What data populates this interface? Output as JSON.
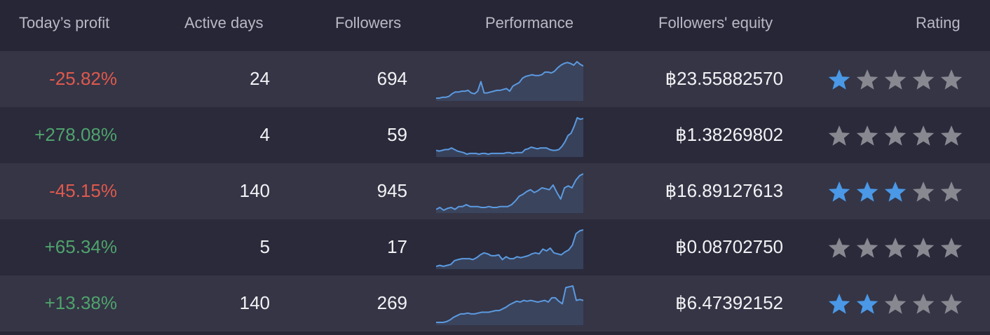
{
  "colors": {
    "negative": "#e0594c",
    "positive": "#4fa36b",
    "star_active": "#4a98e6",
    "star_inactive": "#888891",
    "sparkline": "#5b9ae0"
  },
  "header": {
    "todays_profit": "Today’s profit",
    "active_days": "Active days",
    "followers": "Followers",
    "performance": "Performance",
    "followers_equity": "Followers' equity",
    "rating": "Rating"
  },
  "rows": [
    {
      "profit": "-25.82%",
      "profit_sign": "neg",
      "active_days": "24",
      "followers": "694",
      "performance": [
        8,
        8,
        9,
        9,
        10,
        13,
        15,
        15,
        16,
        16,
        17,
        14,
        13,
        16,
        27,
        14,
        14,
        15,
        16,
        17,
        17,
        18,
        19,
        16,
        22,
        24,
        26,
        31,
        33,
        34,
        35,
        34,
        34,
        35,
        38,
        38,
        37,
        39,
        43,
        46,
        48,
        49,
        48,
        46,
        50,
        47,
        45
      ],
      "equity": "฿23.55882570",
      "rating": 1
    },
    {
      "profit": "+278.08%",
      "profit_sign": "pos",
      "active_days": "4",
      "followers": "59",
      "performance": [
        9,
        8,
        9,
        10,
        10,
        12,
        10,
        8,
        7,
        6,
        4,
        5,
        5,
        5,
        4,
        5,
        5,
        4,
        5,
        5,
        5,
        5,
        5,
        6,
        6,
        5,
        6,
        6,
        6,
        10,
        11,
        13,
        12,
        11,
        12,
        12,
        12,
        10,
        9,
        9,
        10,
        14,
        20,
        28,
        31,
        40,
        51,
        49,
        50
      ],
      "equity": "฿1.38269802",
      "rating": 0
    },
    {
      "profit": "-45.15%",
      "profit_sign": "neg",
      "active_days": "140",
      "followers": "945",
      "performance": [
        4,
        6,
        3,
        5,
        6,
        4,
        7,
        7,
        9,
        7,
        7,
        7,
        6,
        6,
        7,
        6,
        6,
        7,
        7,
        7,
        9,
        13,
        18,
        20,
        23,
        25,
        22,
        24,
        27,
        26,
        25,
        30,
        22,
        15,
        27,
        29,
        27,
        35,
        40,
        42
      ],
      "equity": "฿16.89127613",
      "rating": 3
    },
    {
      "profit": "+65.34%",
      "profit_sign": "pos",
      "active_days": "5",
      "followers": "17",
      "performance": [
        6,
        7,
        6,
        7,
        8,
        12,
        13,
        14,
        14,
        14,
        13,
        15,
        18,
        20,
        19,
        17,
        17,
        18,
        13,
        16,
        14,
        14,
        16,
        15,
        16,
        17,
        19,
        20,
        19,
        24,
        22,
        25,
        20,
        19,
        18,
        21,
        23,
        28,
        40,
        43,
        44
      ],
      "equity": "฿0.08702750",
      "rating": 0
    },
    {
      "profit": "+13.38%",
      "profit_sign": "pos",
      "active_days": "140",
      "followers": "269",
      "performance": [
        4,
        4,
        4,
        5,
        7,
        10,
        12,
        14,
        14,
        15,
        14,
        14,
        15,
        16,
        16,
        16,
        17,
        18,
        18,
        20,
        22,
        25,
        27,
        29,
        28,
        30,
        29,
        30,
        29,
        28,
        29,
        30,
        28,
        33,
        33,
        29,
        26,
        45,
        46,
        47,
        30,
        31,
        30
      ],
      "equity": "฿6.47392152",
      "rating": 2
    }
  ]
}
